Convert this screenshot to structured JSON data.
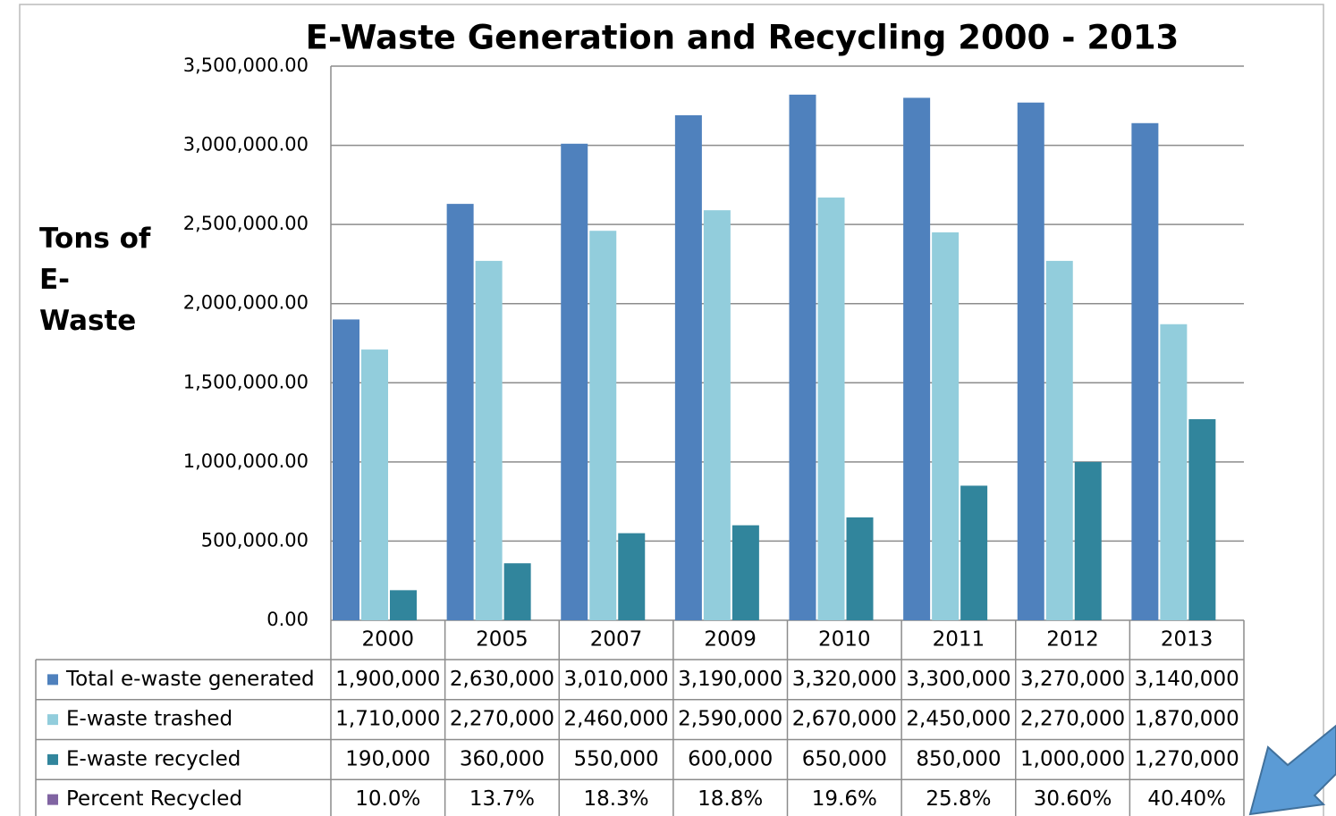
{
  "chart_data": {
    "type": "bar",
    "title": "E-Waste Generation and Recycling 2000 - 2013",
    "y_label": "Tons of E-Waste",
    "categories": [
      "2000",
      "2005",
      "2007",
      "2009",
      "2010",
      "2011",
      "2012",
      "2013"
    ],
    "series": [
      {
        "name": "Total e-waste generated",
        "color": "#4f81bd",
        "values": [
          1900000,
          2630000,
          3010000,
          3190000,
          3320000,
          3300000,
          3270000,
          3140000
        ],
        "value_labels": [
          "1,900,000",
          "2,630,000",
          "3,010,000",
          "3,190,000",
          "3,320,000",
          "3,300,000",
          "3,270,000",
          "3,140,000"
        ]
      },
      {
        "name": "E-waste trashed",
        "color": "#92cddc",
        "values": [
          1710000,
          2270000,
          2460000,
          2590000,
          2670000,
          2450000,
          2270000,
          1870000
        ],
        "value_labels": [
          "1,710,000",
          "2,270,000",
          "2,460,000",
          "2,590,000",
          "2,670,000",
          "2,450,000",
          "2,270,000",
          "1,870,000"
        ]
      },
      {
        "name": "E-waste recycled",
        "color": "#31859c",
        "values": [
          190000,
          360000,
          550000,
          600000,
          650000,
          850000,
          1000000,
          1270000
        ],
        "value_labels": [
          "190,000",
          "360,000",
          "550,000",
          "600,000",
          "650,000",
          "850,000",
          "1,000,000",
          "1,270,000"
        ]
      },
      {
        "name": "Percent Recycled",
        "color": "#8064a2",
        "values": [
          10.0,
          13.7,
          18.3,
          18.8,
          19.6,
          25.8,
          30.6,
          40.4
        ],
        "value_labels": [
          "10.0%",
          "13.7%",
          "18.3%",
          "18.8%",
          "19.6%",
          "25.8%",
          "30.60%",
          "40.40%"
        ]
      }
    ],
    "ylim": [
      0,
      3500000
    ],
    "yticks": [
      {
        "value": 0,
        "label": "0.00"
      },
      {
        "value": 500000,
        "label": "500,000.00"
      },
      {
        "value": 1000000,
        "label": "1,000,000.00"
      },
      {
        "value": 1500000,
        "label": "1,500,000.00"
      },
      {
        "value": 2000000,
        "label": "2,000,000.00"
      },
      {
        "value": 2500000,
        "label": "2,500,000.00"
      },
      {
        "value": 3000000,
        "label": "3,000,000.00"
      },
      {
        "value": 3500000,
        "label": "3,500,000.00"
      }
    ],
    "grid": true
  }
}
